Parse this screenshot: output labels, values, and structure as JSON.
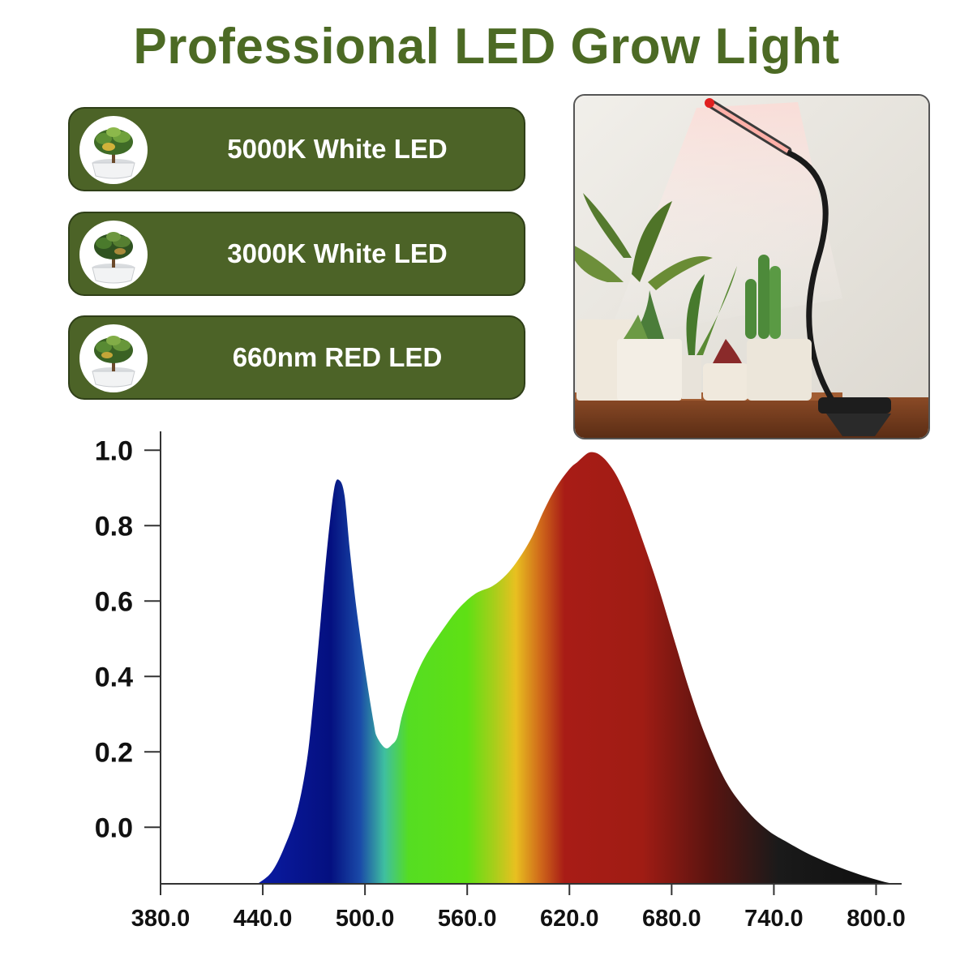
{
  "title": "Professional LED Grow Light",
  "features": [
    {
      "label": "5000K White LED",
      "icon": "potted-plant-icon"
    },
    {
      "label": "3000K White LED",
      "icon": "potted-plant-icon"
    },
    {
      "label": "660nm RED LED",
      "icon": "potted-plant-icon"
    }
  ],
  "colors": {
    "title": "#4c6a24",
    "pill": "#4c6327",
    "pill_text": "#ffffff"
  },
  "photo": {
    "subject": "clip-on-grow-light-with-houseplants"
  },
  "chart_data": {
    "type": "area",
    "xlabel": "",
    "ylabel": "",
    "xlim": [
      380,
      815
    ],
    "ylim": [
      -0.15,
      1.05
    ],
    "x_ticks": [
      {
        "value": 380,
        "label": "380.0"
      },
      {
        "value": 440,
        "label": "440.0"
      },
      {
        "value": 500,
        "label": "500.0"
      },
      {
        "value": 560,
        "label": "560.0"
      },
      {
        "value": 620,
        "label": "620.0"
      },
      {
        "value": 680,
        "label": "680.0"
      },
      {
        "value": 740,
        "label": "740.0"
      },
      {
        "value": 800,
        "label": "800.0"
      }
    ],
    "y_ticks": [
      {
        "value": 0.0,
        "label": "0.0"
      },
      {
        "value": 0.2,
        "label": "0.2"
      },
      {
        "value": 0.4,
        "label": "0.4"
      },
      {
        "value": 0.6,
        "label": "0.6"
      },
      {
        "value": 0.8,
        "label": "0.8"
      },
      {
        "value": 1.0,
        "label": "1.0"
      }
    ],
    "grid": false,
    "fill": "visible-spectrum-gradient",
    "x": [
      437,
      445,
      452,
      460,
      466,
      470,
      474,
      478,
      482,
      485,
      488,
      491,
      495,
      500,
      505,
      507,
      512,
      516,
      519,
      522,
      528,
      535,
      545,
      555,
      565,
      575,
      583,
      590,
      598,
      605,
      612,
      620,
      625,
      630,
      633,
      637,
      642,
      648,
      655,
      663,
      672,
      682,
      690,
      700,
      712,
      725,
      737,
      748,
      760,
      775,
      790,
      805,
      812
    ],
    "y": [
      -0.15,
      -0.12,
      -0.06,
      0.04,
      0.18,
      0.35,
      0.55,
      0.75,
      0.9,
      0.92,
      0.88,
      0.74,
      0.58,
      0.42,
      0.28,
      0.24,
      0.21,
      0.22,
      0.24,
      0.3,
      0.38,
      0.45,
      0.52,
      0.58,
      0.62,
      0.64,
      0.67,
      0.71,
      0.77,
      0.84,
      0.9,
      0.95,
      0.97,
      0.99,
      0.995,
      0.99,
      0.97,
      0.93,
      0.86,
      0.76,
      0.64,
      0.49,
      0.37,
      0.24,
      0.12,
      0.04,
      -0.01,
      -0.04,
      -0.07,
      -0.1,
      -0.125,
      -0.145,
      -0.15
    ]
  }
}
